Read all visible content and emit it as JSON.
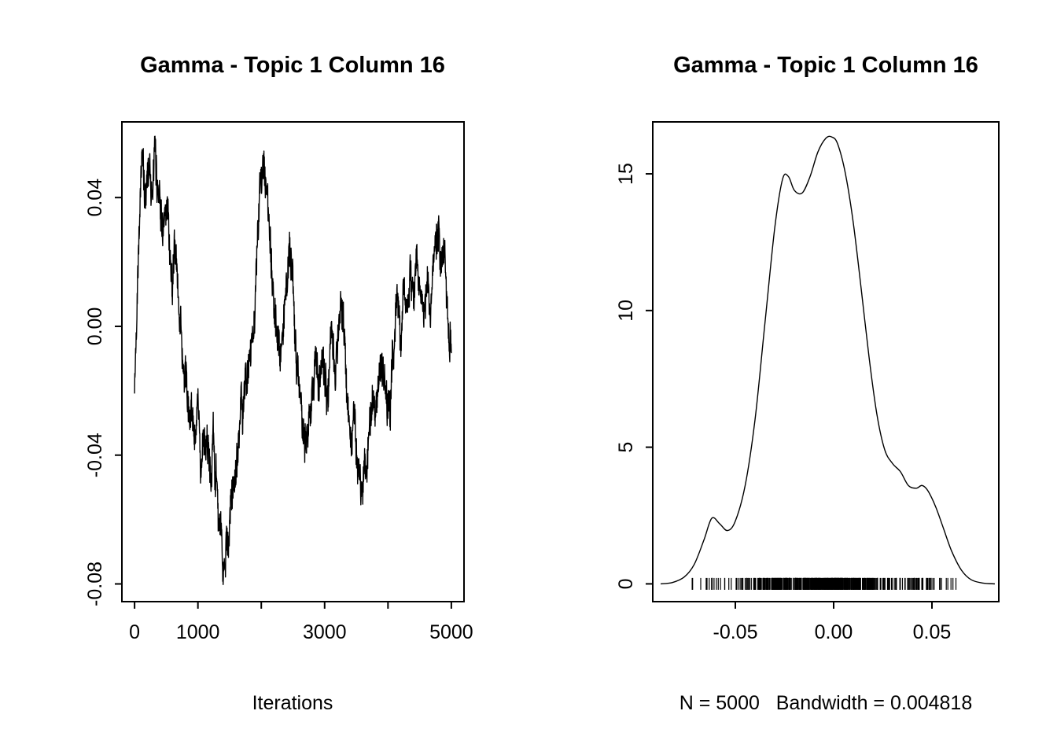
{
  "figure": {
    "background": "#ffffff",
    "text_color": "#000000",
    "line_color": "#000000"
  },
  "chart_data": [
    {
      "type": "line",
      "name": "mcmc-trace",
      "title": "Gamma - Topic 1 Column 16",
      "xlabel": "Iterations",
      "ylabel": "",
      "xlim": [
        -200,
        5200
      ],
      "ylim": [
        -0.0855,
        0.0635
      ],
      "xticks": [
        0,
        1000,
        2000,
        3000,
        4000,
        5000
      ],
      "xtick_labels": [
        "0",
        "1000",
        "",
        "3000",
        "",
        "5000"
      ],
      "yticks": [
        -0.08,
        -0.04,
        0,
        0.04
      ],
      "ytick_labels": [
        "-0.08",
        "-0.04",
        "0.00",
        "0.04"
      ],
      "grid": false,
      "legend": false,
      "keypoints": [
        [
          0,
          -0.021
        ],
        [
          30,
          0.0
        ],
        [
          60,
          0.03
        ],
        [
          90,
          0.044
        ],
        [
          130,
          0.055
        ],
        [
          160,
          0.036
        ],
        [
          200,
          0.047
        ],
        [
          240,
          0.054
        ],
        [
          280,
          0.04
        ],
        [
          320,
          0.05
        ],
        [
          360,
          0.042
        ],
        [
          400,
          0.047
        ],
        [
          440,
          0.036
        ],
        [
          480,
          0.03
        ],
        [
          520,
          0.036
        ],
        [
          560,
          0.024
        ],
        [
          600,
          0.018
        ],
        [
          640,
          0.026
        ],
        [
          680,
          0.01
        ],
        [
          720,
          0.0
        ],
        [
          760,
          -0.008
        ],
        [
          800,
          -0.016
        ],
        [
          840,
          -0.026
        ],
        [
          880,
          -0.036
        ],
        [
          920,
          -0.03
        ],
        [
          960,
          -0.04
        ],
        [
          1000,
          -0.034
        ],
        [
          1040,
          -0.044
        ],
        [
          1080,
          -0.036
        ],
        [
          1120,
          -0.044
        ],
        [
          1160,
          -0.032
        ],
        [
          1200,
          -0.04
        ],
        [
          1240,
          -0.03
        ],
        [
          1280,
          -0.044
        ],
        [
          1320,
          -0.055
        ],
        [
          1360,
          -0.062
        ],
        [
          1400,
          -0.072
        ],
        [
          1430,
          -0.078
        ],
        [
          1460,
          -0.064
        ],
        [
          1490,
          -0.072
        ],
        [
          1520,
          -0.06
        ],
        [
          1560,
          -0.052
        ],
        [
          1600,
          -0.046
        ],
        [
          1650,
          -0.038
        ],
        [
          1700,
          -0.028
        ],
        [
          1750,
          -0.018
        ],
        [
          1800,
          -0.01
        ],
        [
          1850,
          -0.002
        ],
        [
          1900,
          0.008
        ],
        [
          1950,
          0.028
        ],
        [
          2000,
          0.048
        ],
        [
          2040,
          0.06
        ],
        [
          2080,
          0.046
        ],
        [
          2120,
          0.03
        ],
        [
          2160,
          0.016
        ],
        [
          2200,
          0.006
        ],
        [
          2250,
          -0.002
        ],
        [
          2300,
          -0.008
        ],
        [
          2350,
          0.004
        ],
        [
          2400,
          0.014
        ],
        [
          2440,
          0.032
        ],
        [
          2480,
          0.02
        ],
        [
          2520,
          0.004
        ],
        [
          2560,
          -0.01
        ],
        [
          2600,
          -0.022
        ],
        [
          2650,
          -0.034
        ],
        [
          2700,
          -0.042
        ],
        [
          2750,
          -0.028
        ],
        [
          2800,
          -0.014
        ],
        [
          2850,
          -0.008
        ],
        [
          2900,
          -0.016
        ],
        [
          2950,
          -0.006
        ],
        [
          3000,
          -0.012
        ],
        [
          3050,
          -0.02
        ],
        [
          3100,
          -0.008
        ],
        [
          3150,
          -0.016
        ],
        [
          3200,
          -0.002
        ],
        [
          3250,
          0.014
        ],
        [
          3300,
          -0.006
        ],
        [
          3350,
          -0.024
        ],
        [
          3400,
          -0.034
        ],
        [
          3450,
          -0.026
        ],
        [
          3500,
          -0.044
        ],
        [
          3550,
          -0.036
        ],
        [
          3600,
          -0.05
        ],
        [
          3650,
          -0.04
        ],
        [
          3700,
          -0.028
        ],
        [
          3750,
          -0.02
        ],
        [
          3800,
          -0.03
        ],
        [
          3850,
          -0.02
        ],
        [
          3900,
          -0.01
        ],
        [
          3950,
          -0.018
        ],
        [
          4000,
          -0.026
        ],
        [
          4050,
          -0.014
        ],
        [
          4100,
          -0.004
        ],
        [
          4150,
          0.006
        ],
        [
          4200,
          -0.004
        ],
        [
          4250,
          0.01
        ],
        [
          4300,
          0.0
        ],
        [
          4350,
          0.012
        ],
        [
          4400,
          0.004
        ],
        [
          4450,
          0.018
        ],
        [
          4500,
          0.01
        ],
        [
          4550,
          0.0
        ],
        [
          4600,
          0.014
        ],
        [
          4650,
          0.006
        ],
        [
          4700,
          0.02
        ],
        [
          4750,
          0.028
        ],
        [
          4800,
          0.032
        ],
        [
          4850,
          0.016
        ],
        [
          4900,
          0.024
        ],
        [
          4950,
          0.004
        ],
        [
          5000,
          -0.008
        ]
      ],
      "noise": {
        "seed": 42,
        "walk": 0.006,
        "walk_decay": 0.92,
        "jitter": 0.009,
        "samples": 1600
      }
    },
    {
      "type": "line",
      "name": "density",
      "title": "Gamma - Topic 1 Column 16",
      "xlabel": "N = 5000   Bandwidth = 0.004818",
      "ylabel": "",
      "n": 5000,
      "bandwidth": 0.004818,
      "xlim": [
        -0.092,
        0.084
      ],
      "ylim": [
        -0.65,
        16.9
      ],
      "xticks": [
        -0.05,
        0,
        0.05
      ],
      "xtick_labels": [
        "-0.05",
        "0.00",
        "0.05"
      ],
      "yticks": [
        0,
        5,
        10,
        15
      ],
      "ytick_labels": [
        "0",
        "5",
        "10",
        "15"
      ],
      "grid": false,
      "legend": false,
      "points": [
        [
          -0.088,
          0.0
        ],
        [
          -0.082,
          0.05
        ],
        [
          -0.076,
          0.25
        ],
        [
          -0.071,
          0.7
        ],
        [
          -0.066,
          1.6
        ],
        [
          -0.062,
          2.4
        ],
        [
          -0.058,
          2.2
        ],
        [
          -0.054,
          1.95
        ],
        [
          -0.05,
          2.3
        ],
        [
          -0.045,
          3.6
        ],
        [
          -0.04,
          6.0
        ],
        [
          -0.035,
          9.5
        ],
        [
          -0.03,
          13.0
        ],
        [
          -0.026,
          14.8
        ],
        [
          -0.023,
          14.9
        ],
        [
          -0.02,
          14.4
        ],
        [
          -0.016,
          14.3
        ],
        [
          -0.012,
          14.9
        ],
        [
          -0.008,
          15.8
        ],
        [
          -0.004,
          16.3
        ],
        [
          -0.001,
          16.35
        ],
        [
          0.002,
          16.1
        ],
        [
          0.006,
          15.0
        ],
        [
          0.01,
          13.2
        ],
        [
          0.014,
          10.8
        ],
        [
          0.018,
          8.3
        ],
        [
          0.022,
          6.2
        ],
        [
          0.026,
          4.9
        ],
        [
          0.03,
          4.4
        ],
        [
          0.034,
          4.1
        ],
        [
          0.038,
          3.6
        ],
        [
          0.042,
          3.5
        ],
        [
          0.045,
          3.6
        ],
        [
          0.048,
          3.4
        ],
        [
          0.052,
          2.8
        ],
        [
          0.056,
          2.0
        ],
        [
          0.06,
          1.2
        ],
        [
          0.065,
          0.5
        ],
        [
          0.07,
          0.15
        ],
        [
          0.076,
          0.03
        ],
        [
          0.082,
          0.0
        ]
      ],
      "rug": {
        "min": -0.073,
        "max": 0.064,
        "count": 560,
        "seed": 7
      }
    }
  ]
}
